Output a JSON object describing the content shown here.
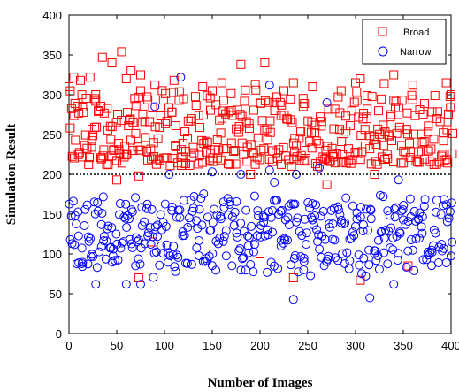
{
  "chart_data": {
    "type": "scatter",
    "title": "",
    "xlabel": "Number of Images",
    "ylabel": "Simulation Result",
    "xlim": [
      0,
      400
    ],
    "ylim": [
      0,
      400
    ],
    "xticks": [
      "0",
      "50",
      "100",
      "150",
      "200",
      "250",
      "300",
      "350",
      "400"
    ],
    "yticks": [
      "0",
      "50",
      "100",
      "150",
      "200",
      "250",
      "300",
      "350",
      "400"
    ],
    "threshold": 200,
    "legend_position": "top-right",
    "grid": false,
    "series": [
      {
        "name": "Broad",
        "color": "#ff0000",
        "marker": "square",
        "range": [
          210,
          300
        ],
        "points": [
          [
            0,
            310
          ],
          [
            5,
            322
          ],
          [
            12,
            318
          ],
          [
            22,
            322
          ],
          [
            28,
            300
          ],
          [
            35,
            347
          ],
          [
            45,
            340
          ],
          [
            55,
            354
          ],
          [
            60,
            320
          ],
          [
            65,
            330
          ],
          [
            75,
            325
          ],
          [
            90,
            312
          ],
          [
            110,
            318
          ],
          [
            120,
            295
          ],
          [
            140,
            310
          ],
          [
            150,
            305
          ],
          [
            160,
            315
          ],
          [
            170,
            280
          ],
          [
            180,
            338
          ],
          [
            195,
            313
          ],
          [
            205,
            340
          ],
          [
            225,
            305
          ],
          [
            235,
            315
          ],
          [
            255,
            310
          ],
          [
            285,
            305
          ],
          [
            300,
            315
          ],
          [
            305,
            320
          ],
          [
            330,
            314
          ],
          [
            340,
            325
          ],
          [
            360,
            312
          ],
          [
            395,
            315
          ],
          [
            400,
            300
          ],
          [
            50,
            193
          ],
          [
            73,
            198
          ],
          [
            190,
            200
          ],
          [
            270,
            187
          ],
          [
            320,
            200
          ],
          [
            88,
            115
          ],
          [
            73,
            70
          ],
          [
            200,
            100
          ],
          [
            235,
            70
          ],
          [
            305,
            67
          ],
          [
            355,
            85
          ]
        ]
      },
      {
        "name": "Narrow",
        "color": "#0000ff",
        "marker": "circle",
        "range": [
          80,
          170
        ],
        "points": [
          [
            75,
            62
          ],
          [
            117,
            322
          ],
          [
            210,
            312
          ],
          [
            270,
            290
          ],
          [
            262,
            208
          ],
          [
            105,
            200
          ],
          [
            238,
            200
          ],
          [
            345,
            193
          ],
          [
            150,
            203
          ],
          [
            180,
            200
          ],
          [
            210,
            205
          ],
          [
            215,
            190
          ],
          [
            90,
            285
          ],
          [
            235,
            43
          ],
          [
            315,
            45
          ],
          [
            340,
            62
          ],
          [
            28,
            62
          ],
          [
            60,
            62
          ]
        ]
      }
    ]
  }
}
